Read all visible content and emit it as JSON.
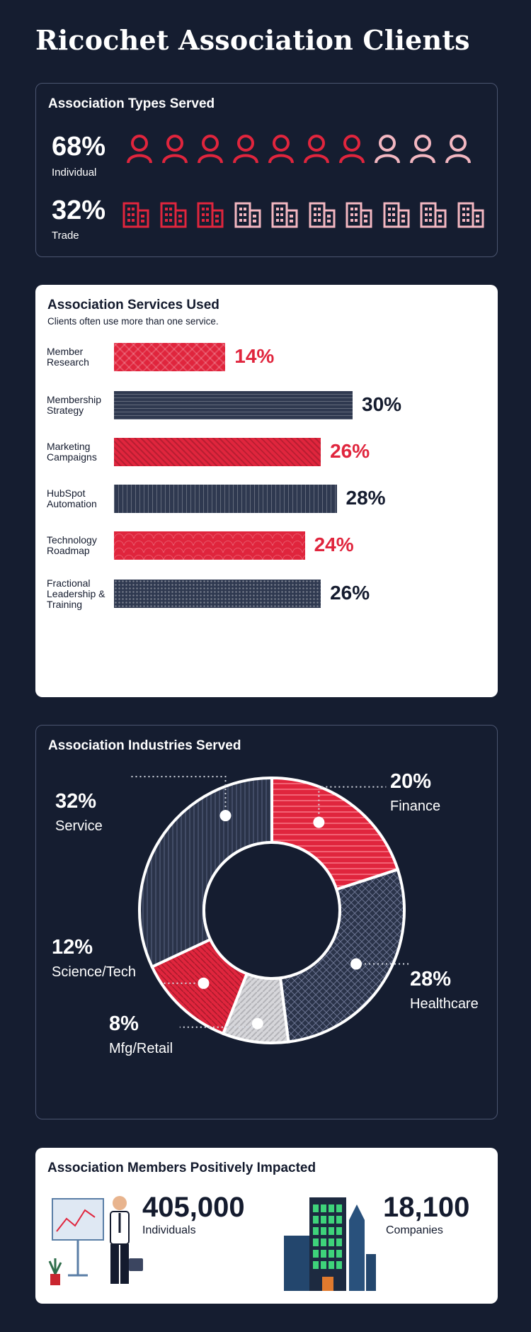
{
  "title": "Ricochet Association Clients",
  "colors": {
    "red": "#e0253d",
    "navy": "#2f3950",
    "pink": "#f3b7c1",
    "background": "#151d30"
  },
  "types": {
    "title": "Association Types Served",
    "individual": {
      "pct": "68%",
      "label": "Individual",
      "icon": "person-icon",
      "filled": 7,
      "total": 10
    },
    "trade": {
      "pct": "32%",
      "label": "Trade",
      "icon": "building-icon",
      "filled": 3,
      "total": 10
    }
  },
  "services": {
    "title": "Association Services Used",
    "subtitle": "Clients often use more than one service.",
    "items": [
      {
        "label": "Member Research",
        "value": "14%"
      },
      {
        "label": "Membership Strategy",
        "value": "30%"
      },
      {
        "label": "Marketing Campaigns",
        "value": "26%"
      },
      {
        "label": "HubSpot Automation",
        "value": "28%"
      },
      {
        "label": "Technology Roadmap",
        "value": "24%"
      },
      {
        "label": "Fractional Leadership & Training",
        "value": "26%"
      }
    ]
  },
  "industries": {
    "title": "Association Industries Served",
    "slices": [
      {
        "pct": "20%",
        "label": "Finance"
      },
      {
        "pct": "28%",
        "label": "Healthcare"
      },
      {
        "pct": "8%",
        "label": "Mfg/Retail"
      },
      {
        "pct": "12%",
        "label": "Science/Tech"
      },
      {
        "pct": "32%",
        "label": "Service"
      }
    ]
  },
  "impact": {
    "title": "Association Members Positively Impacted",
    "individuals": {
      "value": "405,000",
      "label": "Individuals"
    },
    "companies": {
      "value": "18,100",
      "label": "Companies"
    }
  },
  "chart_data": [
    {
      "type": "bar",
      "title": "Association Services Used",
      "subtitle": "Clients often use more than one service.",
      "categories": [
        "Member Research",
        "Membership Strategy",
        "Marketing Campaigns",
        "HubSpot Automation",
        "Technology Roadmap",
        "Fractional Leadership & Training"
      ],
      "values": [
        14,
        30,
        26,
        28,
        24,
        26
      ],
      "orientation": "horizontal"
    },
    {
      "type": "pie",
      "title": "Association Industries Served",
      "categories": [
        "Finance",
        "Healthcare",
        "Mfg/Retail",
        "Science/Tech",
        "Service"
      ],
      "values": [
        20,
        28,
        8,
        12,
        32
      ],
      "donut": true
    },
    {
      "type": "bar",
      "title": "Association Types Served",
      "categories": [
        "Individual",
        "Trade"
      ],
      "values": [
        68,
        32
      ]
    }
  ]
}
